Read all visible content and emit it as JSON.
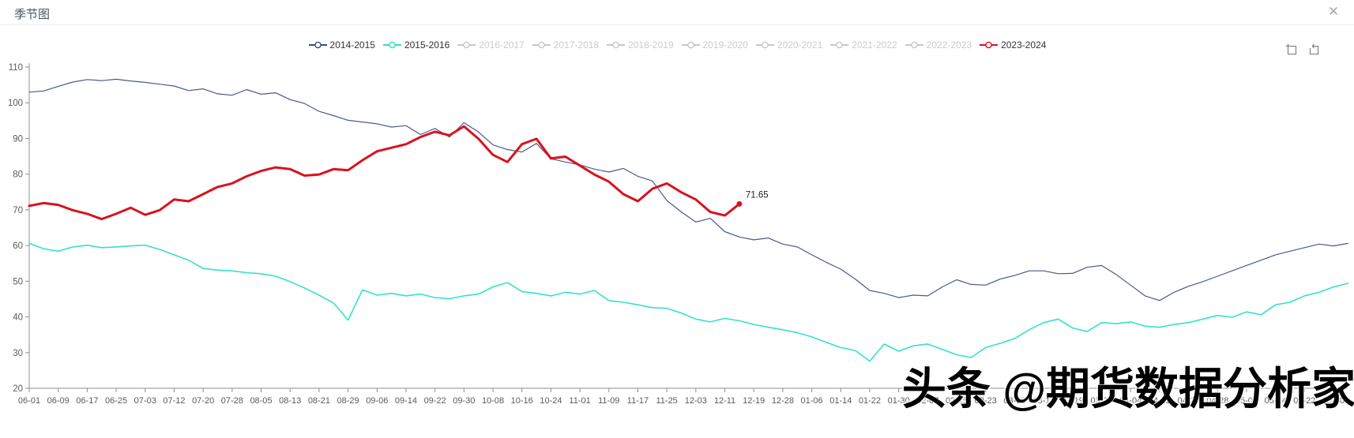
{
  "window": {
    "title": "季节图"
  },
  "icons": {
    "close": "✕"
  },
  "legend": {
    "items": [
      {
        "label": "2014-2015",
        "color": "#3a4a7d",
        "enabled": true
      },
      {
        "label": "2015-2016",
        "color": "#2ee0c4",
        "enabled": true
      },
      {
        "label": "2016-2017",
        "color": "#c8c8c8",
        "enabled": false
      },
      {
        "label": "2017-2018",
        "color": "#c8c8c8",
        "enabled": false
      },
      {
        "label": "2018-2019",
        "color": "#c8c8c8",
        "enabled": false
      },
      {
        "label": "2019-2020",
        "color": "#c8c8c8",
        "enabled": false
      },
      {
        "label": "2020-2021",
        "color": "#c8c8c8",
        "enabled": false
      },
      {
        "label": "2021-2022",
        "color": "#c8c8c8",
        "enabled": false
      },
      {
        "label": "2022-2023",
        "color": "#c8c8c8",
        "enabled": false
      },
      {
        "label": "2023-2024",
        "color": "#d9121f",
        "enabled": true
      }
    ]
  },
  "chart_data": {
    "type": "line",
    "title": "季节图",
    "xlabel": "",
    "ylabel": "",
    "ylim": [
      20,
      110
    ],
    "yticks": [
      20,
      30,
      40,
      50,
      60,
      70,
      80,
      90,
      100,
      110
    ],
    "grid": false,
    "legend_position": "top",
    "categories": [
      "06-01",
      "06-09",
      "06-17",
      "06-25",
      "07-03",
      "07-12",
      "07-20",
      "07-28",
      "08-05",
      "08-13",
      "08-21",
      "08-29",
      "09-06",
      "09-14",
      "09-22",
      "09-30",
      "10-08",
      "10-16",
      "10-24",
      "11-01",
      "11-09",
      "11-17",
      "11-25",
      "12-03",
      "12-11",
      "12-19",
      "12-28",
      "01-06",
      "01-14",
      "01-22",
      "01-30",
      "02-07",
      "02-15",
      "02-23",
      "03-03",
      "03-11",
      "03-19",
      "03-27",
      "04-04",
      "04-12",
      "04-20",
      "04-28",
      "05-06",
      "05-14",
      "05-22",
      "05-30"
    ],
    "series": [
      {
        "name": "2014-2015",
        "color": "#4a5a8a",
        "width": 1.2,
        "xstep": 0.5,
        "values": [
          103,
          103.3,
          104.6,
          105.8,
          106.5,
          106.2,
          106.6,
          106.1,
          105.7,
          105.2,
          104.7,
          103.4,
          103.9,
          102.5,
          102.1,
          103.7,
          102.4,
          102.8,
          100.9,
          99.8,
          97.6,
          96.4,
          95.1,
          94.6,
          94.1,
          93.2,
          93.6,
          91.1,
          92.8,
          90.4,
          94.4,
          91.8,
          88.2,
          86.9,
          86.2,
          88.6,
          84.3,
          83.4,
          82.6,
          81.4,
          80.6,
          81.6,
          79.4,
          78.1,
          72.6,
          69.4,
          66.6,
          67.6,
          63.9,
          62.4,
          61.6,
          62.1,
          60.4,
          59.6,
          57.4,
          55.3,
          53.4,
          50.6,
          47.4,
          46.6,
          45.4,
          46.1,
          45.9,
          48.4,
          50.4,
          49.1,
          48.9,
          50.6,
          51.6,
          52.9,
          52.9,
          52.1,
          52.2,
          53.9,
          54.4,
          51.9,
          48.9,
          45.9,
          44.6,
          46.9,
          48.6,
          49.9,
          51.4,
          52.9,
          54.4,
          55.9,
          57.4,
          58.4,
          59.4,
          60.4,
          59.9,
          60.6
        ]
      },
      {
        "name": "2015-2016",
        "color": "#35e2c6",
        "width": 1.6,
        "xstep": 0.5,
        "values": [
          60.6,
          59.1,
          58.4,
          59.6,
          60.1,
          59.4,
          59.6,
          59.9,
          60.1,
          58.9,
          57.4,
          55.9,
          53.6,
          53.1,
          52.9,
          52.4,
          52.1,
          51.4,
          49.9,
          48.1,
          46.1,
          43.9,
          39.1,
          47.6,
          46.1,
          46.6,
          45.9,
          46.4,
          45.4,
          45.1,
          45.9,
          46.4,
          48.4,
          49.6,
          47.1,
          46.6,
          45.9,
          46.9,
          46.4,
          47.4,
          44.6,
          44.1,
          43.4,
          42.6,
          42.4,
          41.1,
          39.4,
          38.6,
          39.6,
          38.9,
          37.9,
          37.1,
          36.4,
          35.6,
          34.4,
          32.9,
          31.4,
          30.6,
          27.6,
          32.4,
          30.4,
          31.9,
          32.4,
          30.9,
          29.4,
          28.6,
          31.4,
          32.6,
          33.9,
          36.4,
          38.4,
          39.4,
          36.9,
          35.9,
          38.4,
          38.1,
          38.6,
          37.4,
          37.1,
          37.9,
          38.4,
          39.4,
          40.4,
          39.9,
          41.4,
          40.6,
          43.4,
          44.1,
          45.9,
          46.9,
          48.4,
          49.4
        ]
      },
      {
        "name": "2023-2024",
        "color": "#d9121f",
        "width": 3,
        "xstep": 0.5,
        "end_label": "71.65",
        "values": [
          71.1,
          71.9,
          71.4,
          69.9,
          68.9,
          67.4,
          68.9,
          70.6,
          68.6,
          69.9,
          72.9,
          72.4,
          74.4,
          76.4,
          77.4,
          79.4,
          80.9,
          81.9,
          81.4,
          79.6,
          79.9,
          81.4,
          81.1,
          83.9,
          86.4,
          87.4,
          88.4,
          90.4,
          91.9,
          90.9,
          93.4,
          89.9,
          85.4,
          83.4,
          88.4,
          89.9,
          84.4,
          84.9,
          82.4,
          79.9,
          77.9,
          74.4,
          72.4,
          75.9,
          77.4,
          74.9,
          72.9,
          69.4,
          68.4,
          71.65
        ]
      }
    ]
  },
  "watermark": {
    "text": "头条 @期货数据分析家"
  }
}
